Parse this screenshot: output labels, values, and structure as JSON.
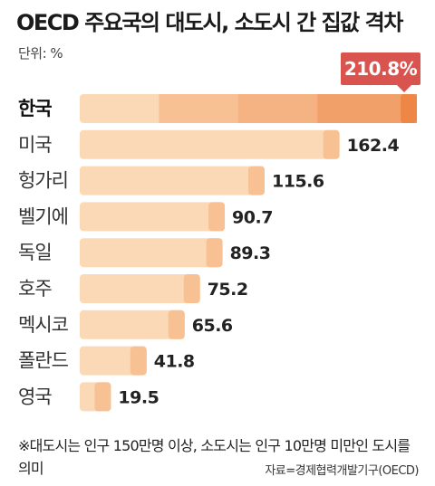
{
  "title": "OECD 주요국의 대도시, 소도시 간 집값 격차",
  "unit": "단위: %",
  "footnote": "※대도시는 인구 150만명 이상, 소도시는 인구 10만명 미만인 도시를 의미",
  "source": "자료=경제협력개발기구(OECD)",
  "colors": {
    "bar_light": "#fbd9b6",
    "bar_mid": "#f7c194",
    "bar_strong": "#f2a06a",
    "bar_accent": "#ee8746",
    "callout": "#d9534f"
  },
  "chart_data": {
    "type": "bar",
    "orientation": "horizontal",
    "categories": [
      "한국",
      "미국",
      "헝가리",
      "벨기에",
      "독일",
      "호주",
      "멕시코",
      "폴란드",
      "영국"
    ],
    "values": [
      210.8,
      162.4,
      115.6,
      90.7,
      89.3,
      75.2,
      65.6,
      41.8,
      19.5
    ],
    "value_labels": [
      "210.8%",
      "162.4",
      "115.6",
      "90.7",
      "89.3",
      "75.2",
      "65.6",
      "41.8",
      "19.5"
    ],
    "highlight": "한국",
    "title": "OECD 주요국의 대도시, 소도시 간 집값 격차",
    "xlabel": "",
    "ylabel": "",
    "xlim": [
      0,
      210.8
    ],
    "grid": false,
    "legend": "none"
  }
}
